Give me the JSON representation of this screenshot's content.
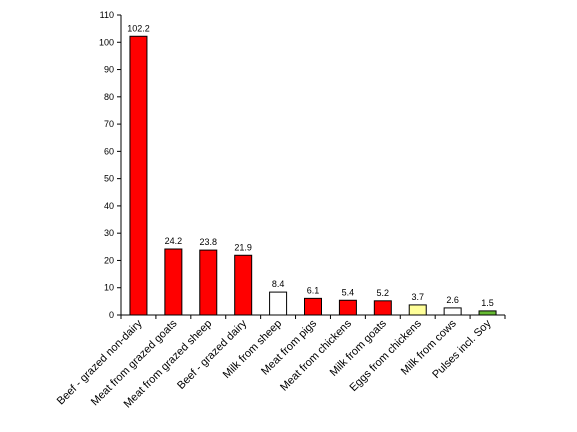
{
  "chart_data": {
    "type": "bar",
    "title": "",
    "xlabel": "",
    "ylabel": "",
    "ylim": [
      0,
      110
    ],
    "yticks": [
      0,
      10,
      20,
      30,
      40,
      50,
      60,
      70,
      80,
      90,
      100,
      110
    ],
    "grid": false,
    "categories": [
      "Beef - grazed non-dairy",
      "Meat from grazed goats",
      "Meat from grazed sheep",
      "Beef - grazed dairy",
      "Milk from sheep",
      "Meat from pigs",
      "Meat from chickens",
      "Milk from goats",
      "Eggs from chickens",
      "Milk from cows",
      "Pulses incl. Soy"
    ],
    "values": [
      102.2,
      24.2,
      23.8,
      21.9,
      8.4,
      6.1,
      5.4,
      5.2,
      3.7,
      2.6,
      1.5
    ],
    "value_labels": [
      "102.2",
      "24.2",
      "23.8",
      "21.9",
      "8.4",
      "6.1",
      "5.4",
      "5.2",
      "3.7",
      "2.6",
      "1.5"
    ],
    "bar_colors": [
      "#ff0000",
      "#ff0000",
      "#ff0000",
      "#ff0000",
      "#ffffff",
      "#ff0000",
      "#ff0000",
      "#ff0000",
      "#ffff99",
      "#ffffff",
      "#66bb33"
    ]
  }
}
